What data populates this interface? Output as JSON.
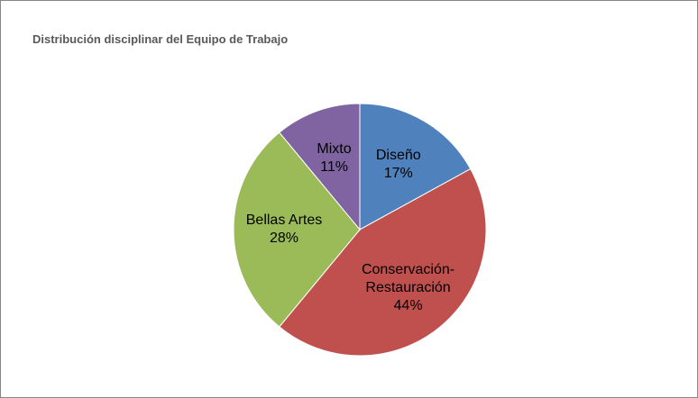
{
  "chart_data": {
    "type": "pie",
    "title": "Distribución disciplinar del Equipo de Trabajo",
    "categories": [
      "Diseño",
      "Conservación-Restauración",
      "Bellas Artes",
      "Mixto"
    ],
    "values": [
      17,
      44,
      28,
      11
    ],
    "value_labels": [
      "17%",
      "44%",
      "28%",
      "11%"
    ],
    "colors": [
      "#4f81bd",
      "#c0504d",
      "#9bbb59",
      "#8064a2"
    ]
  }
}
